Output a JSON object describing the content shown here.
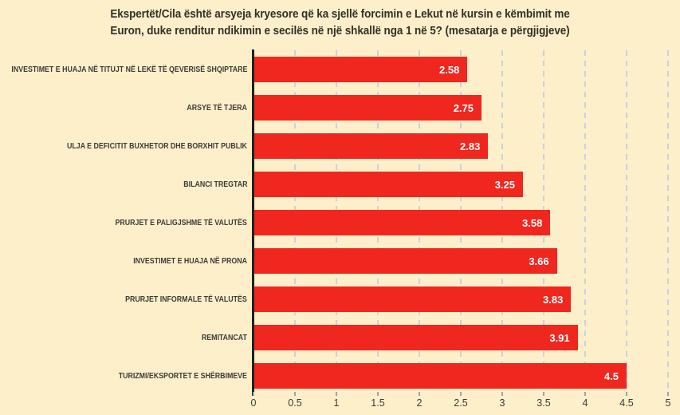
{
  "title": {
    "line1": "Ekspertët/Cila është arsyeja kryesore që ka sjellë forcimin e Lekut në kursin e këmbimit me",
    "line2": "Euron, duke renditur ndikimin e secilës në një shkallë nga 1 në 5? (mesatarja e përgjigjeve)"
  },
  "chart_data": {
    "type": "bar",
    "orientation": "horizontal",
    "title": "Ekspertët/Cila është arsyeja kryesore që ka sjellë forcimin e Lekut në kursin e këmbimit me Euron, duke renditur ndikimin e secilës në një shkallë nga 1 në 5? (mesatarja e përgjigjeve)",
    "categories": [
      "INVESTIMET E HUAJA NË TITUJT NË LEKË TË QEVERISË SHQIPTARE",
      "ARSYE TË TJERA",
      "ULJA E DEFICITIT BUXHETOR DHE BORXHIT PUBLIK",
      "BILANCI TREGTAR",
      "PRURJET E PALIGJSHME TË VALUTËS",
      "INVESTIMET E HUAJA NË PRONA",
      "PRURJET INFORMALE TË VALUTËS",
      "REMITANCAT",
      "TURIZMI/EKSPORTET E SHËRBIMEVE"
    ],
    "values": [
      2.58,
      2.75,
      2.83,
      3.25,
      3.58,
      3.66,
      3.83,
      3.91,
      4.5
    ],
    "xlabel": "",
    "ylabel": "",
    "xlim": [
      0,
      5
    ],
    "xticks": [
      0,
      0.5,
      1,
      1.5,
      2,
      2.5,
      3,
      3.5,
      4,
      4.5,
      5
    ],
    "grid": "vertical dashed gridlines at every 0.5",
    "legend": "none",
    "value_labels": "inside bar end, white bold",
    "colors": {
      "background": "#fcefca",
      "bar": "#f0271f",
      "gridline": "#c9d2df",
      "axis_line": "#23211c",
      "title_text": "#33302a",
      "category_text": "#3e3c37",
      "tick_text": "#3c3b38",
      "value_text": "#ffffff"
    }
  }
}
